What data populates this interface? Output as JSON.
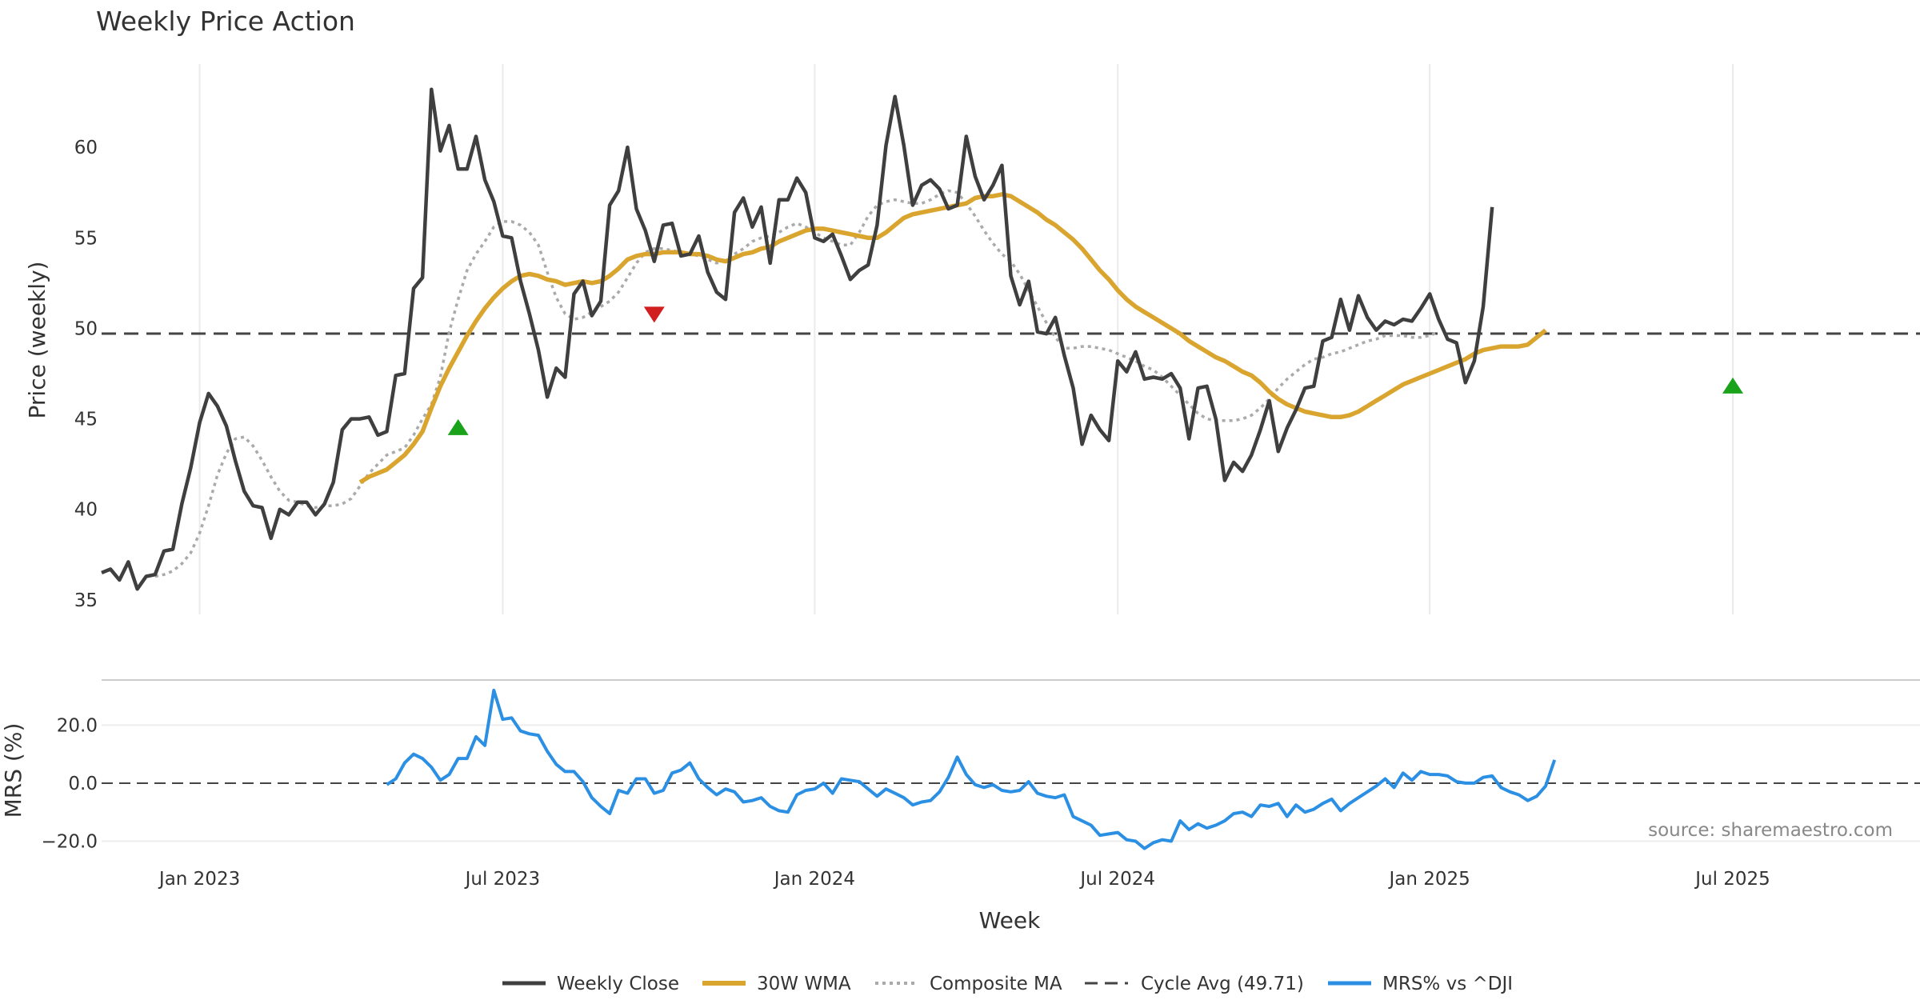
{
  "chart_data": {
    "type": "line",
    "title": "Weekly Price Action",
    "xlabel": "Week",
    "x_ticks": [
      "Jan 2023",
      "Jul 2023",
      "Jan 2024",
      "Jul 2024",
      "Jan 2025",
      "Jul 2025"
    ],
    "x_tick_weeks": [
      8,
      42,
      77,
      111,
      146,
      180
    ],
    "x_range": [
      -3,
      201
    ],
    "price_panel": {
      "ylabel": "Price (weekly)",
      "ylim": [
        34.2,
        64.6
      ],
      "yticks": [
        35,
        40,
        45,
        50,
        55,
        60
      ],
      "cycle_avg": 49.71
    },
    "mrs_panel": {
      "ylabel": "MRS (%)",
      "ylim": [
        -24,
        35
      ],
      "yticks": [
        20,
        0,
        -20
      ],
      "ytick_labels": [
        "20.0",
        "0.0",
        "−20.0"
      ]
    },
    "legend": [
      {
        "label": "Weekly Close",
        "color": "#3f3f3f",
        "style": "solid"
      },
      {
        "label": "30W WMA",
        "color": "#d9a52e",
        "style": "solid"
      },
      {
        "label": "Composite MA",
        "color": "#aaaaaa",
        "style": "dotted"
      },
      {
        "label": "Cycle Avg (49.71)",
        "color": "#444444",
        "style": "dashed"
      },
      {
        "label": "MRS% vs ^DJI",
        "color": "#2b8fe3",
        "style": "solid"
      }
    ],
    "series": [
      {
        "name": "Weekly Close",
        "x_start": -3,
        "values": [
          36.5,
          36.7,
          36.1,
          37.1,
          35.6,
          36.3,
          36.4,
          37.7,
          37.8,
          40.3,
          42.3,
          44.8,
          46.4,
          45.7,
          44.6,
          42.7,
          41.0,
          40.2,
          40.1,
          38.4,
          40.0,
          39.7,
          40.4,
          40.4,
          39.7,
          40.3,
          41.5,
          44.4,
          45.0,
          45.0,
          45.1,
          44.1,
          44.3,
          47.4,
          47.5,
          52.2,
          52.8,
          63.2,
          59.8,
          61.2,
          58.8,
          58.8,
          60.6,
          58.2,
          57.0,
          55.1,
          55.0,
          52.6,
          50.8,
          48.8,
          46.2,
          47.8,
          47.3,
          51.9,
          52.6,
          50.7,
          51.5,
          56.8,
          57.6,
          60.0,
          56.6,
          55.4,
          53.7,
          55.7,
          55.8,
          54.0,
          54.1,
          55.1,
          53.1,
          52.0,
          51.6,
          56.4,
          57.2,
          55.6,
          56.7,
          53.6,
          57.1,
          57.1,
          58.3,
          57.5,
          55.0,
          54.8,
          55.2,
          54.0,
          52.7,
          53.2,
          53.5,
          55.7,
          60.1,
          62.8,
          60.1,
          56.8,
          57.9,
          58.2,
          57.7,
          56.6,
          56.8,
          60.6,
          58.4,
          57.1,
          57.9,
          59.0,
          52.9,
          51.3,
          52.6,
          49.8,
          49.7,
          50.6,
          48.5,
          46.7,
          43.6,
          45.2,
          44.4,
          43.8,
          48.2,
          47.6,
          48.7,
          47.2,
          47.3,
          47.2,
          47.5,
          46.7,
          43.9,
          46.7,
          46.8,
          45.0,
          41.6,
          42.6,
          42.1,
          43.0,
          44.4,
          46.0,
          43.2,
          44.5,
          45.5,
          46.7,
          46.8,
          49.3,
          49.5,
          51.6,
          49.9,
          51.8,
          50.6,
          49.9,
          50.4,
          50.2,
          50.5,
          50.4,
          51.1,
          51.9,
          50.5,
          49.4,
          49.2,
          47.0,
          48.2,
          51.2,
          56.7
        ]
      },
      {
        "name": "30W WMA",
        "x_start": 26,
        "values": [
          41.5,
          41.8,
          42.0,
          42.2,
          42.6,
          43.0,
          43.6,
          44.3,
          45.6,
          46.8,
          47.8,
          48.7,
          49.6,
          50.4,
          51.1,
          51.7,
          52.2,
          52.6,
          52.9,
          53.0,
          52.9,
          52.7,
          52.6,
          52.4,
          52.5,
          52.6,
          52.5,
          52.6,
          52.9,
          53.3,
          53.8,
          54.0,
          54.1,
          54.1,
          54.2,
          54.2,
          54.2,
          54.1,
          54.1,
          54.0,
          53.8,
          53.7,
          53.9,
          54.1,
          54.2,
          54.4,
          54.5,
          54.8,
          55.0,
          55.2,
          55.4,
          55.5,
          55.5,
          55.4,
          55.3,
          55.2,
          55.1,
          55.0,
          55.0,
          55.3,
          55.7,
          56.1,
          56.3,
          56.4,
          56.5,
          56.6,
          56.7,
          56.8,
          56.9,
          57.2,
          57.3,
          57.3,
          57.4,
          57.3,
          57.0,
          56.7,
          56.4,
          56.0,
          55.7,
          55.3,
          54.9,
          54.4,
          53.8,
          53.2,
          52.7,
          52.1,
          51.6,
          51.2,
          50.9,
          50.6,
          50.3,
          50.0,
          49.7,
          49.3,
          49.0,
          48.7,
          48.4,
          48.2,
          47.9,
          47.6,
          47.4,
          47.0,
          46.5,
          46.1,
          45.8,
          45.6,
          45.4,
          45.3,
          45.2,
          45.1,
          45.1,
          45.2,
          45.4,
          45.7,
          46.0,
          46.3,
          46.6,
          46.9,
          47.1,
          47.3,
          47.5,
          47.7,
          47.9,
          48.1,
          48.3,
          48.6,
          48.8,
          48.9,
          49.0,
          49.0,
          49.0,
          49.1,
          49.5,
          49.9
        ]
      },
      {
        "name": "Composite MA",
        "x_start": 3,
        "values": [
          36.3,
          36.4,
          36.6,
          37.0,
          37.6,
          38.7,
          40.2,
          41.9,
          43.1,
          43.9,
          44.0,
          43.5,
          42.7,
          41.8,
          41.0,
          40.5,
          40.4,
          40.2,
          40.1,
          40.2,
          40.2,
          40.3,
          40.6,
          41.3,
          42.0,
          42.5,
          43.0,
          43.2,
          43.4,
          44.1,
          45.0,
          45.8,
          47.3,
          49.8,
          51.6,
          53.2,
          54.1,
          54.8,
          55.6,
          55.9,
          55.9,
          55.7,
          55.3,
          54.6,
          53.1,
          51.7,
          50.8,
          50.5,
          50.6,
          50.9,
          51.2,
          51.5,
          52.0,
          52.8,
          53.6,
          54.2,
          54.4,
          54.4,
          54.3,
          54.2,
          54.1,
          54.0,
          53.8,
          53.6,
          53.8,
          54.1,
          54.4,
          54.8,
          55.0,
          55.1,
          55.3,
          55.6,
          55.8,
          55.6,
          55.3,
          55.0,
          54.8,
          54.6,
          54.6,
          55.3,
          56.2,
          56.8,
          57.0,
          57.1,
          57.0,
          56.9,
          56.9,
          57.1,
          57.4,
          57.6,
          57.5,
          56.9,
          56.2,
          55.4,
          54.7,
          54.1,
          53.7,
          53.0,
          52.1,
          51.2,
          50.3,
          49.5,
          48.9,
          48.9,
          49.0,
          49.0,
          48.9,
          48.8,
          48.6,
          48.4,
          48.2,
          47.9,
          47.7,
          47.3,
          46.8,
          46.3,
          45.8,
          45.3,
          45.0,
          44.9,
          44.9,
          44.9,
          45.0,
          45.2,
          45.6,
          46.1,
          46.7,
          47.2,
          47.6,
          48.0,
          48.3,
          48.4,
          48.6,
          48.7,
          48.9,
          49.1,
          49.3,
          49.4,
          49.6,
          49.6,
          49.6,
          49.5,
          49.5,
          49.6,
          49.8
        ]
      },
      {
        "name": "MRS% vs ^DJI",
        "x_start": 29,
        "values": [
          -0.5,
          1.5,
          7,
          10,
          8.5,
          5.5,
          1,
          3,
          8.5,
          8.5,
          16,
          13,
          32,
          22,
          22.5,
          18,
          17,
          16.5,
          11,
          6.5,
          4,
          4,
          0.5,
          -5,
          -8,
          -10.5,
          -2.5,
          -3.5,
          1.5,
          1.5,
          -3.5,
          -2.5,
          3.5,
          4.5,
          7,
          1.5,
          -1.5,
          -4,
          -2,
          -3,
          -6.5,
          -6,
          -5,
          -8,
          -9.5,
          -10,
          -4,
          -2.5,
          -2,
          0,
          -3.5,
          1.5,
          1,
          0.5,
          -2,
          -4.5,
          -2,
          -3.5,
          -5,
          -7.5,
          -6.5,
          -6,
          -3,
          2,
          9,
          3,
          -0.5,
          -1.5,
          -0.5,
          -2.5,
          -3,
          -2.5,
          0.5,
          -3.5,
          -4.5,
          -5,
          -4,
          -11.5,
          -13,
          -14.5,
          -18,
          -17.5,
          -17,
          -19.5,
          -20,
          -22.5,
          -20.5,
          -19.5,
          -20,
          -13,
          -16,
          -14,
          -15.5,
          -14.5,
          -13,
          -10.5,
          -10,
          -11.5,
          -7.5,
          -8,
          -7,
          -11.5,
          -7.5,
          -10,
          -9,
          -7,
          -5.5,
          -9.5,
          -7,
          -5,
          -3,
          -1,
          1.5,
          -1.5,
          3.5,
          1,
          4,
          3,
          3,
          2.5,
          0.5,
          0,
          0,
          2,
          2.5,
          -1.5,
          -3,
          -4,
          -6,
          -4.5,
          -1,
          8
        ]
      }
    ],
    "signals": [
      {
        "type": "buy",
        "week": 37,
        "value": 44.5,
        "color": "#1aa31a"
      },
      {
        "type": "sell",
        "week": 59,
        "value": 50.8,
        "color": "#d11f1f"
      },
      {
        "type": "buy",
        "week": 180,
        "value": 46.8,
        "color": "#1aa31a"
      }
    ],
    "annotation": "source: sharemaestro.com"
  }
}
